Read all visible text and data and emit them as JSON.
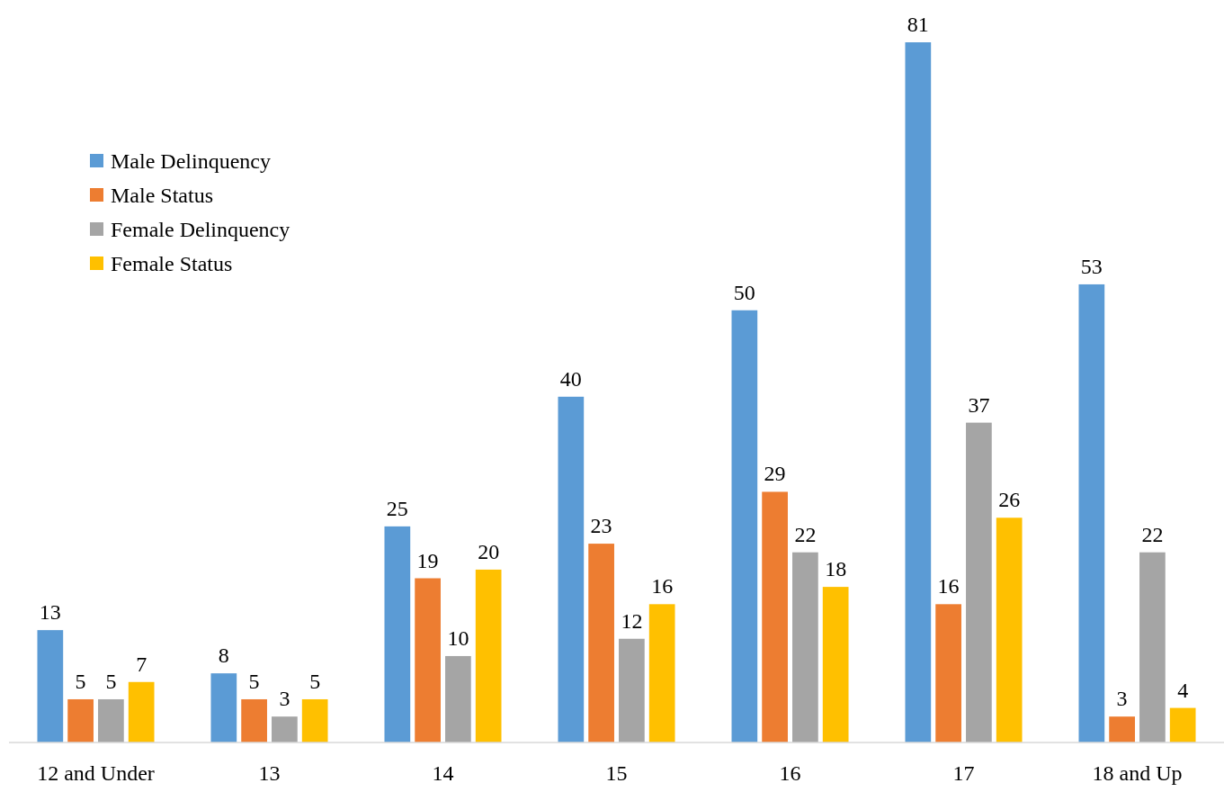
{
  "chart_data": {
    "type": "bar",
    "categories": [
      "12 and Under",
      "13",
      "14",
      "15",
      "16",
      "17",
      "18 and Up"
    ],
    "series": [
      {
        "name": "Male Delinquency",
        "color": "#5b9bd5",
        "values": [
          13,
          8,
          25,
          40,
          50,
          81,
          53
        ]
      },
      {
        "name": "Male Status",
        "color": "#ed7d31",
        "values": [
          5,
          5,
          19,
          23,
          29,
          16,
          3
        ]
      },
      {
        "name": "Female Delinquency",
        "color": "#a5a5a5",
        "values": [
          5,
          3,
          10,
          12,
          22,
          37,
          22
        ]
      },
      {
        "name": "Female Status",
        "color": "#ffc000",
        "values": [
          7,
          5,
          20,
          16,
          18,
          26,
          4
        ]
      }
    ],
    "data_labels": true,
    "legend": "top left"
  }
}
